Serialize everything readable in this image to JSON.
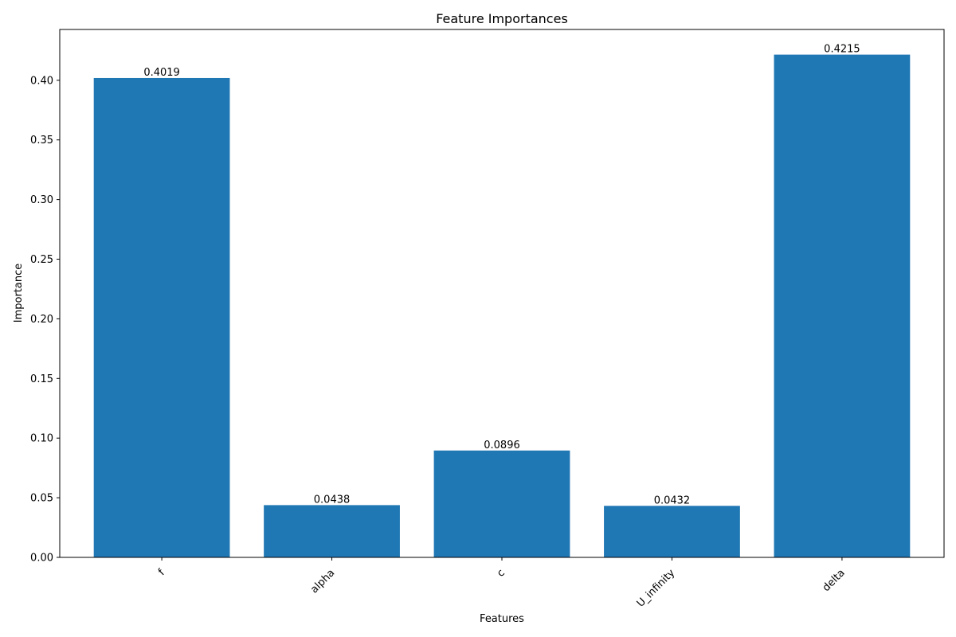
{
  "chart_data": {
    "type": "bar",
    "title": "Feature Importances",
    "xlabel": "Features",
    "ylabel": "Importance",
    "categories": [
      "f",
      "alpha",
      "c",
      "U_infinity",
      "delta"
    ],
    "values": [
      0.4019,
      0.0438,
      0.0896,
      0.0432,
      0.4215
    ],
    "value_labels": [
      "0.4019",
      "0.0438",
      "0.0896",
      "0.0432",
      "0.4215"
    ],
    "yticks": [
      0.0,
      0.05,
      0.1,
      0.15,
      0.2,
      0.25,
      0.3,
      0.35,
      0.4
    ],
    "ytick_labels": [
      "0.00",
      "0.05",
      "0.10",
      "0.15",
      "0.20",
      "0.25",
      "0.30",
      "0.35",
      "0.40"
    ],
    "ylim": [
      0,
      0.4426
    ],
    "grid": false,
    "bar_color": "#1f77b4",
    "xtick_rotation": 45
  }
}
